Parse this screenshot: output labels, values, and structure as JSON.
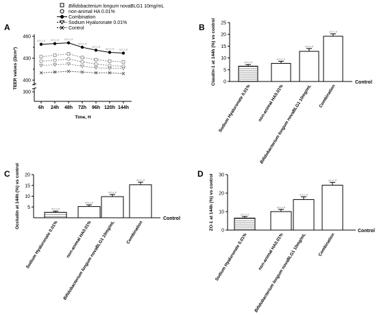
{
  "legend": {
    "items": [
      {
        "label": "Bifidobacterium longum novaBLG1 10mg/mL",
        "marker": "square-open",
        "italic_prefix": "Bifidobacterium longum"
      },
      {
        "label": "non-animal HA 0.01%",
        "marker": "circle-open"
      },
      {
        "label": "Combination",
        "marker": "circle-filled"
      },
      {
        "label": "Sodium Hyaluronate 0.01%",
        "marker": "triangle-down-open"
      },
      {
        "label": "Control",
        "marker": "x"
      }
    ]
  },
  "chart_data": [
    {
      "panel": "A",
      "type": "line",
      "xlabel": "Time, H",
      "ylabel": "TEER values (Ωcm²)",
      "x": [
        "6h",
        "24h",
        "48h",
        "72h",
        "96h",
        "120h",
        "144h"
      ],
      "y_ticks": [
        "300",
        "400",
        "430",
        "460"
      ],
      "y_axis_broken": true,
      "series": [
        {
          "name": "Combination",
          "values": [
            449,
            450,
            451,
            445,
            441,
            438,
            437
          ]
        },
        {
          "name": "Bifidobacterium longum novaBLG1 10mg/mL",
          "values": [
            432,
            434,
            436,
            431,
            428,
            426,
            425
          ]
        },
        {
          "name": "non-animal HA 0.01%",
          "values": [
            426,
            427,
            429,
            425,
            422,
            420,
            419
          ]
        },
        {
          "name": "Sodium Hyaluronate 0.01%",
          "values": [
            420,
            421,
            422,
            419,
            417,
            416,
            416
          ]
        },
        {
          "name": "Control",
          "values": [
            410,
            411,
            412,
            411,
            410,
            410,
            409
          ]
        }
      ],
      "significance_label": "a,b,c,d"
    },
    {
      "panel": "B",
      "type": "bar",
      "ylabel": "Claudin-1 at 144h (%) vs control",
      "categories": [
        "Sodium Hyaluronate 0.01%",
        "non-animal HA0.01%",
        "Bifidobacterium longum novaBLG1 10mg/mL",
        "Combination"
      ],
      "values": [
        6.5,
        7.7,
        12.8,
        19.2
      ],
      "errors": [
        0.7,
        0.9,
        1.2,
        1.0
      ],
      "ylim": [
        0,
        25
      ],
      "y_ticks": [
        "0",
        "5",
        "10",
        "15",
        "20",
        "25"
      ],
      "baseline_label": "Control",
      "significance_label": "a,b,c,d"
    },
    {
      "panel": "C",
      "type": "bar",
      "ylabel": "Occludin at 144h (%) vs control",
      "categories": [
        "Sodium Hyaluronate 0.01%",
        "non-animal HA0.01%",
        "Bifidobacterium longum novaBLG1 10mg/mL",
        "Combination"
      ],
      "values": [
        2.5,
        5.2,
        9.8,
        15.3
      ],
      "errors": [
        0.6,
        0.8,
        1.0,
        1.2
      ],
      "ylim": [
        0,
        20
      ],
      "y_ticks": [
        "5",
        "10",
        "15",
        "20"
      ],
      "baseline_label": "Control",
      "significance_label": "a,b,c,d"
    },
    {
      "panel": "D",
      "type": "bar",
      "ylabel": "ZO-1 at 144h (%) vs control",
      "categories": [
        "Sodium Hyaluronate 0.01%",
        "non-animal HA0.01%",
        "Bifidobacterium longum novaBLG1 10mg/mL",
        "Combination"
      ],
      "values": [
        6.5,
        10.0,
        16.5,
        24.3
      ],
      "errors": [
        0.8,
        1.2,
        1.5,
        1.5
      ],
      "ylim": [
        0,
        30
      ],
      "y_ticks": [
        "0",
        "10",
        "20",
        "30"
      ],
      "baseline_label": "Control",
      "significance_label": "a,b,c,d"
    }
  ]
}
